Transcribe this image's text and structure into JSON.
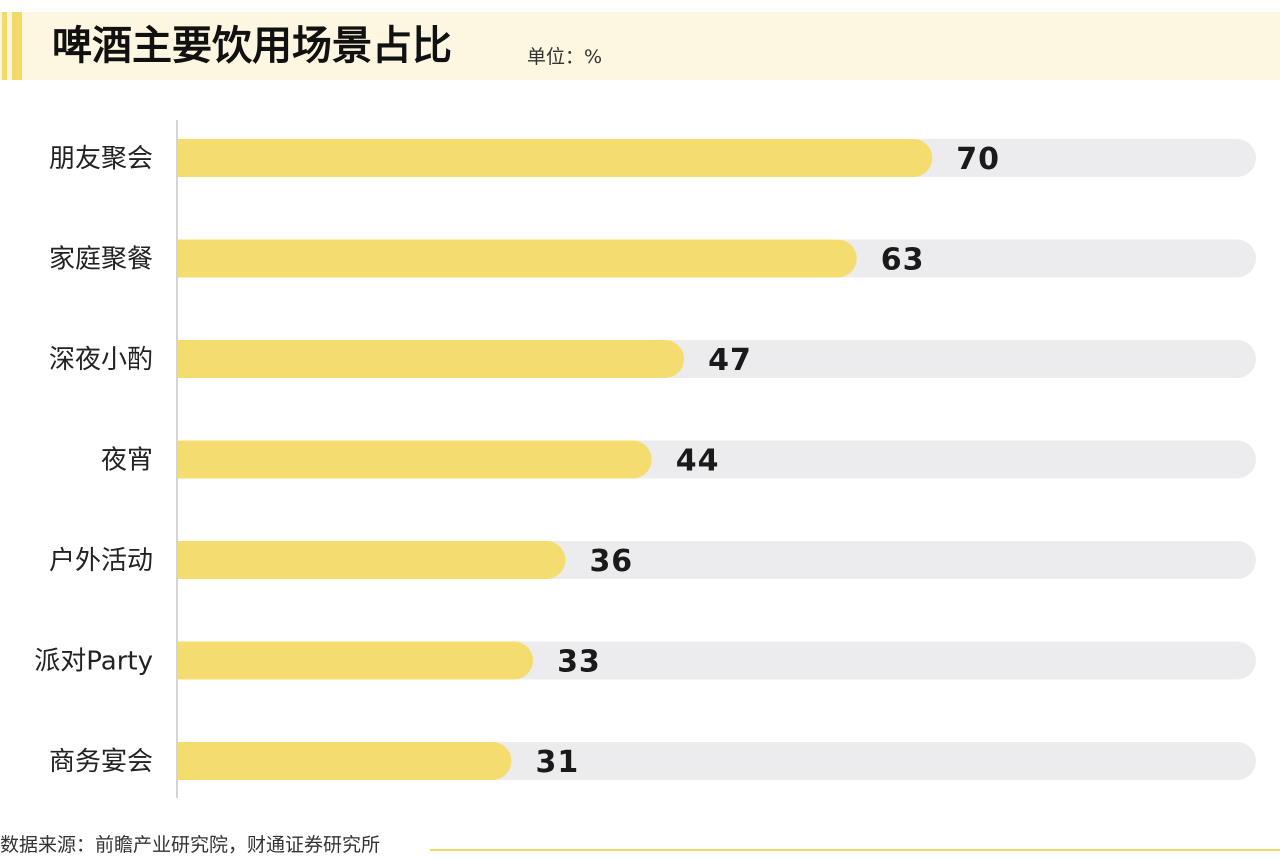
{
  "title": "啤酒主要饮用场景占比",
  "unit": "单位：%",
  "source": "数据来源：前瞻产业研究院，财通证券研究所",
  "colors": {
    "bar": "#f4dd6e",
    "track": "#ececef",
    "accent": "#f3d96a",
    "header_bg": "#fdf6e1"
  },
  "chart_data": {
    "type": "bar",
    "orientation": "horizontal",
    "categories": [
      "朋友聚会",
      "家庭聚餐",
      "深夜小酌",
      "夜宵",
      "户外活动",
      "派对Party",
      "商务宴会"
    ],
    "values": [
      70,
      63,
      47,
      44,
      36,
      33,
      31
    ],
    "xlim": [
      0,
      100
    ],
    "grid": false
  }
}
